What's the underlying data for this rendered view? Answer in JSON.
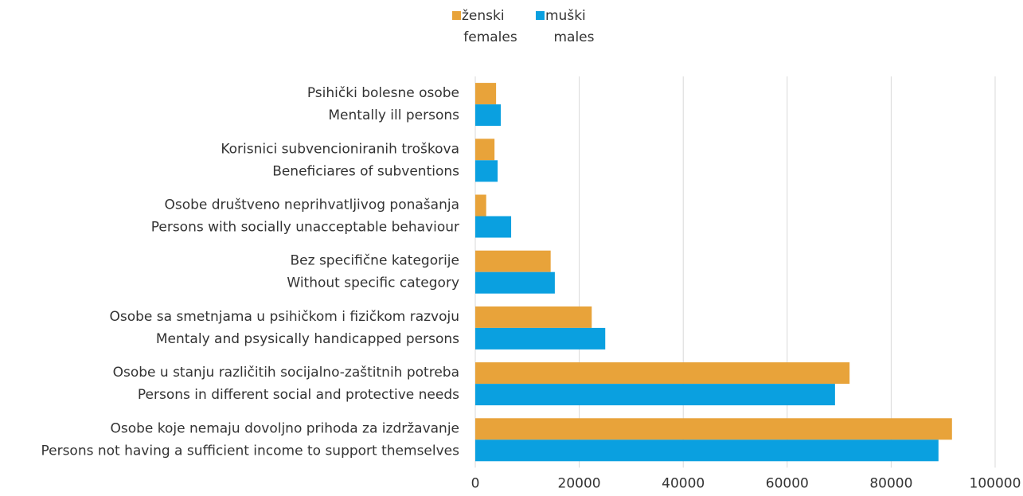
{
  "chart_data": {
    "type": "barh",
    "categories": [
      [
        "Psihički bolesne osobe",
        "Mentally ill persons"
      ],
      [
        "Korisnici subvencioniranih troškova",
        "Beneficiares of subventions"
      ],
      [
        "Osobe društveno neprihvatljivog ponašanja",
        "Persons with socially unacceptable behaviour"
      ],
      [
        "Bez specifične kategorije",
        "Without specific category"
      ],
      [
        "Osobe sa smetnjama u psihičkom i fizičkom razvoju",
        "Mentaly and psysically handicapped persons"
      ],
      [
        "Osobe u stanju različitih socijalno-zaštitnih potreba",
        "Persons in different social and protective needs"
      ],
      [
        "Osobe koje nemaju dovoljno prihoda za izdržavanje",
        "Persons not having a sufficient income to support themselves"
      ]
    ],
    "series": [
      {
        "name": [
          "ženski",
          "females"
        ],
        "color": "#e8a33a",
        "values": [
          4000,
          3700,
          2100,
          14500,
          22400,
          72000,
          91700
        ]
      },
      {
        "name": [
          "muški",
          "males"
        ],
        "color": "#0aa0e0",
        "values": [
          4900,
          4300,
          6900,
          15300,
          25000,
          69200,
          89100
        ]
      }
    ],
    "xlim": [
      0,
      100000
    ],
    "xticks": [
      0,
      20000,
      40000,
      60000,
      80000,
      100000
    ],
    "grid": true,
    "legend": "top"
  }
}
